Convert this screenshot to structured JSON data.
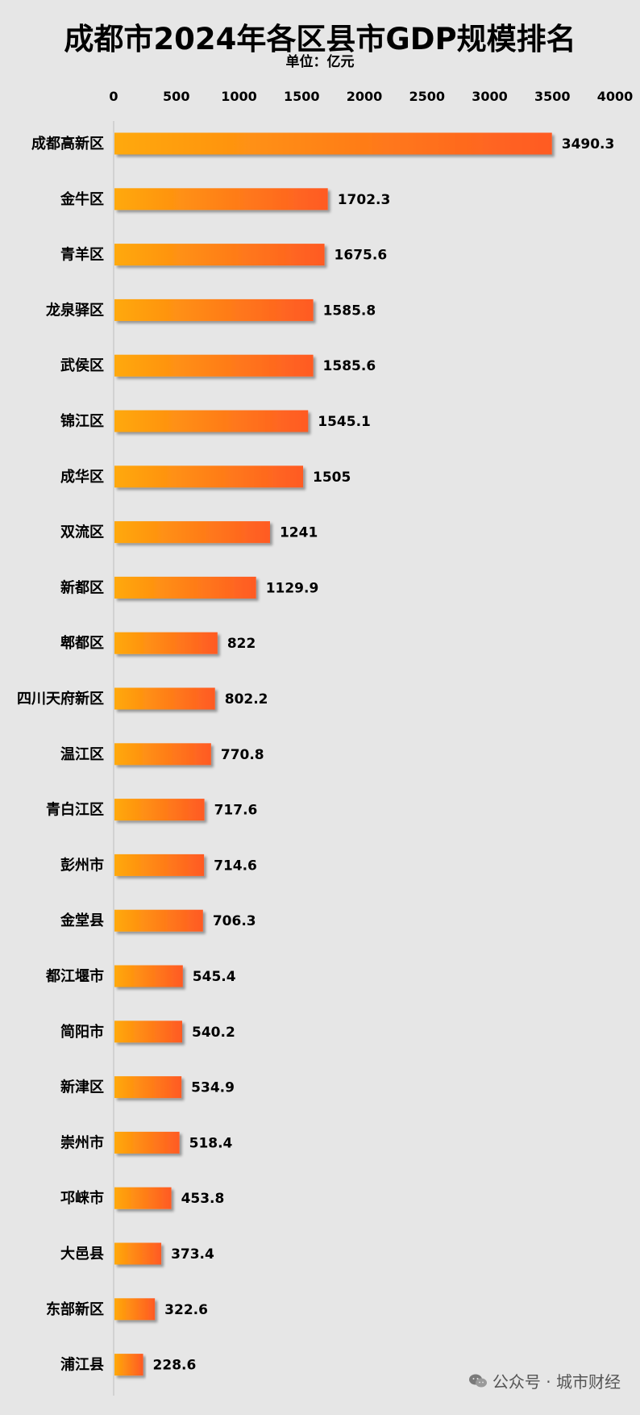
{
  "chart_data": {
    "type": "bar",
    "orientation": "horizontal",
    "title": "成都市2024年各区县市GDP规模排名",
    "subtitle": "单位：亿元",
    "categories": [
      "成都高新区",
      "金牛区",
      "青羊区",
      "龙泉驿区",
      "武侯区",
      "锦江区",
      "成华区",
      "双流区",
      "新都区",
      "郫都区",
      "四川天府新区",
      "温江区",
      "青白江区",
      "彭州市",
      "金堂县",
      "都江堰市",
      "简阳市",
      "新津区",
      "崇州市",
      "邛崃市",
      "大邑县",
      "东部新区",
      "浦江县"
    ],
    "values": [
      3490.3,
      1702.3,
      1675.6,
      1585.8,
      1585.6,
      1545.1,
      1505,
      1241,
      1129.9,
      822,
      802.2,
      770.8,
      717.6,
      714.6,
      706.3,
      545.4,
      540.2,
      534.9,
      518.4,
      453.8,
      373.4,
      322.6,
      228.6
    ],
    "value_labels": [
      "3490.3",
      "1702.3",
      "1675.6",
      "1585.8",
      "1585.6",
      "1545.1",
      "1505",
      "1241",
      "1129.9",
      "822",
      "802.2",
      "770.8",
      "717.6",
      "714.6",
      "706.3",
      "545.4",
      "540.2",
      "534.9",
      "518.4",
      "453.8",
      "373.4",
      "322.6",
      "228.6"
    ],
    "xlim": [
      0,
      4000
    ],
    "xticks": [
      "0",
      "500",
      "1000",
      "1500",
      "2000",
      "2500",
      "3000",
      "3500",
      "4000"
    ],
    "xtick_values": [
      0,
      500,
      1000,
      1500,
      2000,
      2500,
      3000,
      3500,
      4000
    ],
    "axis_position": "top",
    "grid": false,
    "legend": "none",
    "colors": {
      "bar_start": "#FFA90A",
      "bar_end": "#FF5A24",
      "background": "#e6e6e6",
      "text": "#000000"
    }
  },
  "watermark": {
    "icon": "wechat-icon",
    "text": "公众号 · 城市财经"
  }
}
